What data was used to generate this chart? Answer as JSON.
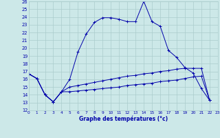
{
  "xlabel": "Graphe des températures (°c)",
  "background_color": "#cce8e8",
  "grid_color": "#aacccc",
  "line_color": "#0000aa",
  "xlim": [
    0,
    23
  ],
  "ylim": [
    12,
    26
  ],
  "xticks": [
    0,
    1,
    2,
    3,
    4,
    5,
    6,
    7,
    8,
    9,
    10,
    11,
    12,
    13,
    14,
    15,
    16,
    17,
    18,
    19,
    20,
    21,
    22,
    23
  ],
  "yticks": [
    12,
    13,
    14,
    15,
    16,
    17,
    18,
    19,
    20,
    21,
    22,
    23,
    24,
    25,
    26
  ],
  "temp_max": [
    16.7,
    16.1,
    14.0,
    13.1,
    14.4,
    16.0,
    19.5,
    21.8,
    23.3,
    23.9,
    23.9,
    23.7,
    23.4,
    23.4,
    26.0,
    23.4,
    22.8,
    19.7,
    18.8,
    17.5,
    16.8,
    14.8,
    13.3
  ],
  "temp_min": [
    16.7,
    16.1,
    14.0,
    13.1,
    14.4,
    14.4,
    14.5,
    14.6,
    14.7,
    14.8,
    14.9,
    15.0,
    15.2,
    15.3,
    15.4,
    15.5,
    15.7,
    15.8,
    15.9,
    16.1,
    16.3,
    16.4,
    13.3
  ],
  "temp_avg": [
    16.7,
    16.1,
    14.0,
    13.1,
    14.4,
    15.0,
    15.2,
    15.4,
    15.6,
    15.8,
    16.0,
    16.2,
    16.4,
    16.5,
    16.7,
    16.8,
    17.0,
    17.1,
    17.3,
    17.4,
    17.4,
    17.4,
    13.3
  ]
}
